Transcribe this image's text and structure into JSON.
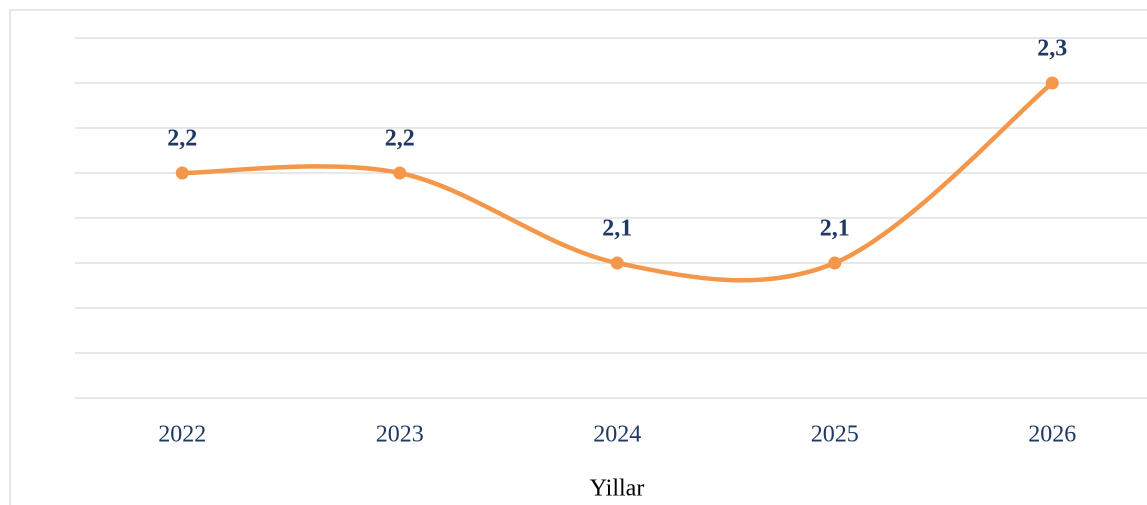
{
  "chart_data": {
    "type": "line",
    "x_label": "Yillar",
    "categories": [
      "2022",
      "2023",
      "2024",
      "2025",
      "2026"
    ],
    "series": [
      {
        "color": "#f4974a",
        "values": [
          2.2,
          2.2,
          2.1,
          2.1,
          2.3
        ],
        "value_labels": [
          "2,2",
          "2,2",
          "2,1",
          "2,1",
          "2,3"
        ]
      }
    ],
    "ylim": [
      1.95,
      2.35
    ],
    "gridlines": [
      1.95,
      2.0,
      2.05,
      2.1,
      2.15,
      2.2,
      2.25,
      2.3,
      2.35
    ],
    "grid": true,
    "smooth": true
  }
}
